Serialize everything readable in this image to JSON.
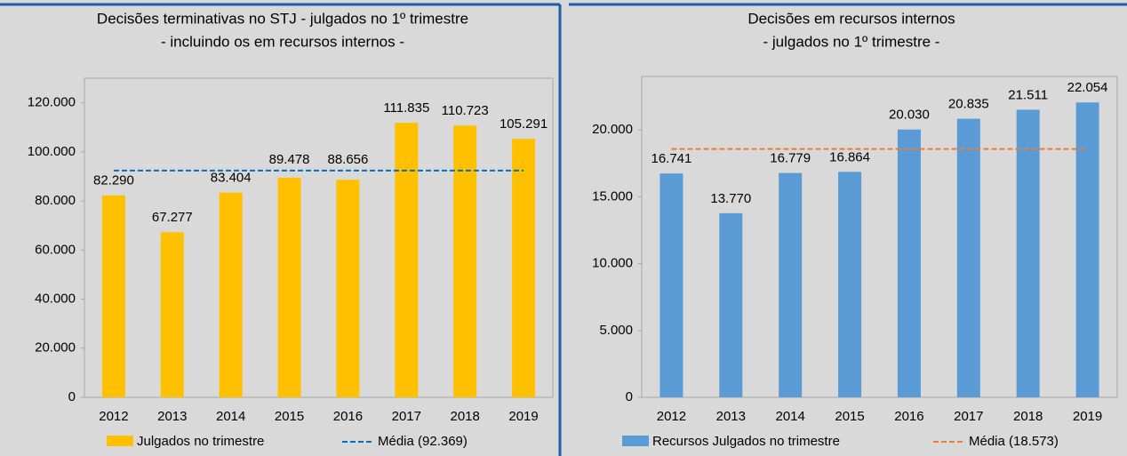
{
  "chart_data": [
    {
      "type": "bar",
      "title": [
        "Decisões terminativas no STJ - julgados no 1º trimestre",
        "- incluindo os em recursos internos -"
      ],
      "categories": [
        "2012",
        "2013",
        "2014",
        "2015",
        "2016",
        "2017",
        "2018",
        "2019"
      ],
      "series": [
        {
          "name": "Julgados no trimestre",
          "color": "#ffc000",
          "values": [
            82290,
            67277,
            83404,
            89478,
            88656,
            111835,
            110723,
            105291
          ],
          "value_labels": [
            "82.290",
            "67.277",
            "83.404",
            "89.478",
            "88.656",
            "111.835",
            "110.723",
            "105.291"
          ]
        }
      ],
      "mean": {
        "name": "Média (92.369)",
        "value": 92369,
        "color": "#0070c0"
      },
      "ylim": [
        0,
        130000
      ],
      "yticks": [
        0,
        {
          "value": 20000,
          "label": "20.000"
        },
        {
          "value": 40000,
          "label": "40.000"
        },
        {
          "value": 60000,
          "label": "60.000"
        },
        {
          "value": 80000,
          "label": "80.000"
        },
        {
          "value": 100000,
          "label": "100.000"
        },
        {
          "value": 120000,
          "label": "120.000"
        }
      ]
    },
    {
      "type": "bar",
      "title": [
        "Decisões em recursos internos",
        "- julgados no 1º trimestre -"
      ],
      "categories": [
        "2012",
        "2013",
        "2014",
        "2015",
        "2016",
        "2017",
        "2018",
        "2019"
      ],
      "series": [
        {
          "name": "Recursos Julgados no trimestre",
          "color": "#5b9bd5",
          "values": [
            16741,
            13770,
            16779,
            16864,
            20030,
            20835,
            21511,
            22054
          ],
          "value_labels": [
            "16.741",
            "13.770",
            "16.779",
            "16.864",
            "20.030",
            "20.835",
            "21.511",
            "22.054"
          ]
        }
      ],
      "mean": {
        "name": "Média (18.573)",
        "value": 18573,
        "color": "#ed7d31"
      },
      "ylim": [
        0,
        24000
      ],
      "yticks": [
        0,
        {
          "value": 5000,
          "label": "5.000"
        },
        {
          "value": 10000,
          "label": "10.000"
        },
        {
          "value": 15000,
          "label": "15.000"
        },
        {
          "value": 20000,
          "label": "20.000"
        }
      ]
    }
  ]
}
